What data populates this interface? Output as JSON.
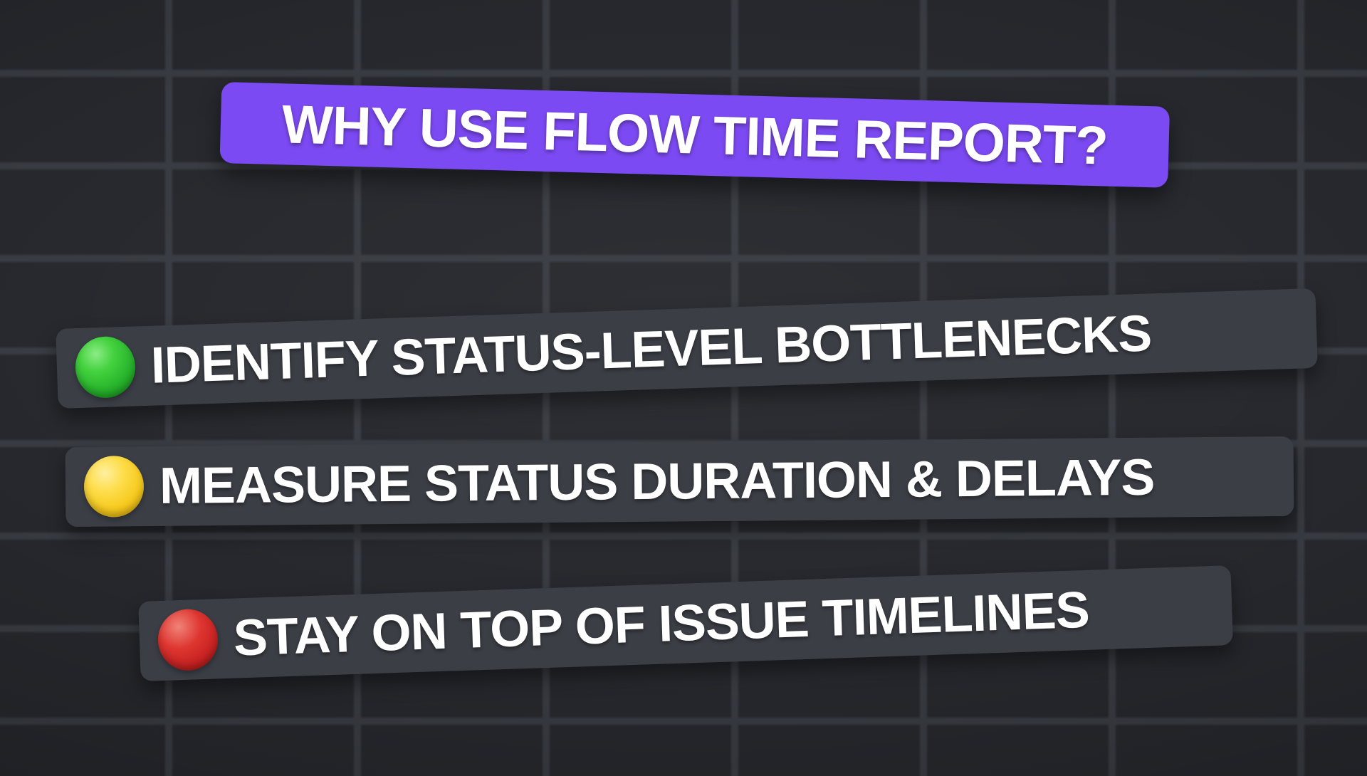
{
  "poster": {
    "title": {
      "label": "WHY USE FLOW TIME REPORT?",
      "banner_color": "#7c4af2",
      "text_color": "#ffffff"
    },
    "bullets": [
      {
        "label": "IDENTIFY STATUS-LEVEL BOTTLENECKS",
        "dot": "green-circle",
        "dot_color": "#28b52c"
      },
      {
        "label": "MEASURE STATUS DURATION & DELAYS",
        "dot": "yellow-circle",
        "dot_color": "#f6c91c"
      },
      {
        "label": "STAY ON TOP OF ISSUE TIMELINES",
        "dot": "red-circle",
        "dot_color": "#c72222"
      }
    ],
    "theme": {
      "background": "#26282d",
      "grid_line": "#383b41",
      "bar_background": "#3b3e45",
      "text": "#ffffff"
    }
  }
}
